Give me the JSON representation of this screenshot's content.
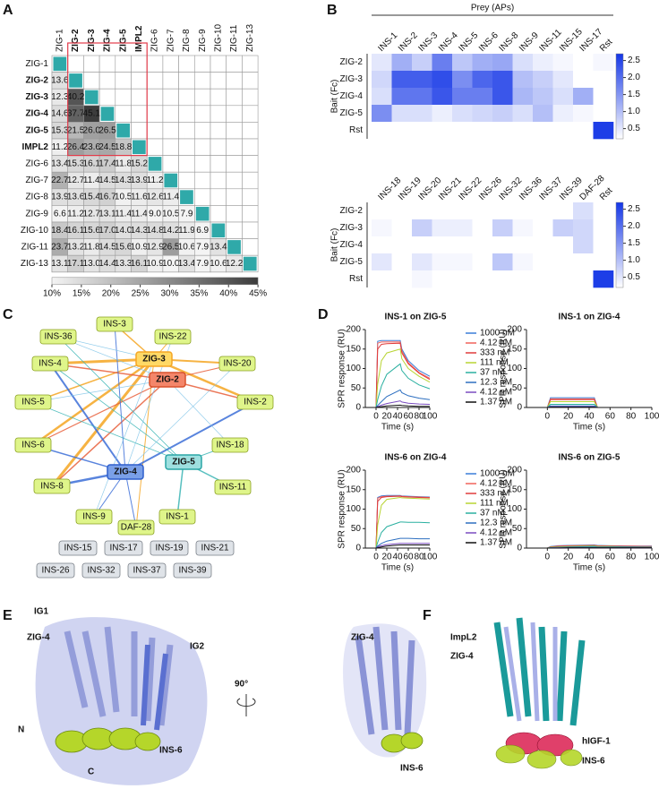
{
  "panel_labels": [
    "A",
    "B",
    "C",
    "D",
    "E",
    "F"
  ],
  "chart_data": [
    {
      "type": "triangle-heatmap",
      "labels": [
        "ZIG-1",
        "ZIG-2",
        "ZIG-3",
        "ZIG-4",
        "ZIG-5",
        "IMPL2",
        "ZIG-6",
        "ZIG-7",
        "ZIG-8",
        "ZIG-9",
        "ZIG-10",
        "ZIG-11",
        "ZIG-13"
      ],
      "bold_labels": [
        false,
        true,
        true,
        true,
        true,
        true,
        false,
        false,
        false,
        false,
        false,
        false,
        false
      ],
      "values": [
        [],
        [
          13.6
        ],
        [
          12.3,
          40.2
        ],
        [
          14.6,
          37.7,
          45.1
        ],
        [
          15.3,
          21.5,
          26.0,
          26.5
        ],
        [
          11.2,
          26.4,
          23.6,
          24.5,
          18.8
        ],
        [
          13.4,
          15.3,
          16.1,
          17.4,
          11.8,
          15.2
        ],
        [
          22.7,
          12.7,
          11.4,
          14.5,
          14.3,
          13.9,
          11.2
        ],
        [
          13.9,
          13.6,
          15.4,
          16.7,
          10.5,
          11.6,
          12.6,
          11.4
        ],
        [
          6.6,
          11.2,
          12.7,
          13.1,
          11.4,
          11.4,
          9.0,
          10.5,
          7.9
        ],
        [
          18.4,
          16.1,
          15.6,
          17.0,
          14.0,
          14.3,
          14.8,
          14.2,
          11.9,
          6.9
        ],
        [
          23.7,
          13.2,
          11.8,
          14.5,
          15.6,
          10.9,
          12.9,
          26.5,
          10.6,
          7.9,
          13.4
        ],
        [
          13.1,
          17.1,
          13.0,
          14.4,
          13.3,
          16.1,
          10.9,
          10.0,
          13.4,
          7.9,
          10.6,
          12.2
        ]
      ],
      "value_labels": [
        [],
        [
          "13.6"
        ],
        [
          "12.3",
          "40.2"
        ],
        [
          "14.6",
          "37.7",
          "45.1"
        ],
        [
          "15.3",
          "21.5",
          "26.0",
          "26.5"
        ],
        [
          "11.2",
          "26.4",
          "23.6",
          "24.5",
          "18.8"
        ],
        [
          "13.4",
          "15.3",
          "16.1",
          "17.4",
          "11.8",
          "15.2"
        ],
        [
          "22.7",
          "12.7",
          "11.4",
          "14.5",
          "14.3",
          "13.9",
          "11.2"
        ],
        [
          "13.9",
          "13.6",
          "15.4",
          "16.7",
          "10.5",
          "11.6",
          "12.6",
          "11.4"
        ],
        [
          "6.6",
          "11.2",
          "12.7",
          "13.1",
          "11.4",
          "11.4",
          "9.0",
          "10.5",
          "7.9"
        ],
        [
          "18.4",
          "16.1",
          "15.6",
          "17.0",
          "14.0",
          "14.3",
          "14.8",
          "14.2",
          "11.9",
          "6.9"
        ],
        [
          "23.7",
          "13.2",
          "11.8",
          "14.5",
          "15.6",
          "10.9",
          "12.9",
          "26.5",
          "10.6",
          "7.9",
          "13.4"
        ],
        [
          "13.1",
          "17.1",
          "13.0",
          "14.4",
          "13.3",
          "16.1",
          "10.9",
          "10.0",
          "13.4",
          "7.9",
          "10.6",
          "12.2"
        ]
      ],
      "diagonal_color": "#2fa9a9",
      "zlim": [
        10,
        45
      ],
      "zticks": [
        {
          "value": 10,
          "label": "10%"
        },
        {
          "value": 15,
          "label": "15%"
        },
        {
          "value": 20,
          "label": "20%"
        },
        {
          "value": 25,
          "label": "25%"
        },
        {
          "value": 30,
          "label": "30%"
        },
        {
          "value": 35,
          "label": "35%"
        },
        {
          "value": 40,
          "label": "40%"
        },
        {
          "value": 45,
          "label": "45%"
        }
      ]
    },
    {
      "type": "heatmap",
      "title": "Prey (APs)",
      "ylabel": "Bait (Fc)",
      "color": "#1436e6",
      "columns": [
        "INS-1",
        "INS-2",
        "INS-3",
        "INS-4",
        "INS-5",
        "INS-6",
        "INS-8",
        "INS-9",
        "INS-11",
        "INS-15",
        "INS-17",
        "Rst"
      ],
      "rows": [
        "ZIG-2",
        "ZIG-3",
        "ZIG-4",
        "ZIG-5",
        "Rst"
      ],
      "values": [
        [
          0.5,
          1.2,
          0.8,
          1.8,
          0.9,
          1.2,
          1.3,
          0.6,
          0.4,
          0.3,
          0.2,
          0.3
        ],
        [
          0.7,
          2.2,
          2.2,
          2.4,
          1.6,
          2.1,
          2.3,
          1.0,
          0.8,
          0.5,
          0.2,
          0.2
        ],
        [
          0.6,
          1.9,
          1.9,
          2.3,
          1.8,
          1.8,
          2.3,
          1.1,
          0.9,
          0.6,
          1.2,
          0.2
        ],
        [
          1.6,
          0.6,
          0.6,
          0.4,
          0.6,
          0.7,
          0.8,
          0.6,
          1.0,
          0.4,
          0.3,
          0.2
        ],
        [
          0.1,
          0.1,
          0.1,
          0.1,
          0.1,
          0.1,
          0.1,
          0.1,
          0.1,
          0.1,
          0.1,
          2.6
        ]
      ],
      "zlim": [
        0.2,
        2.7
      ],
      "zticks": [
        0.5,
        {
          "value": 1,
          "label": "1.0"
        },
        1.5,
        {
          "value": 2,
          "label": "2.0"
        },
        2.5
      ]
    },
    {
      "type": "heatmap",
      "ylabel": "Bait (Fc)",
      "color": "#1436e6",
      "columns": [
        "INS-18",
        "INS-19",
        "INS-20",
        "INS-21",
        "INS-22",
        "INS-26",
        "INS-32",
        "INS-36",
        "INS-37",
        "INS-39",
        "DAF-28",
        "Rst"
      ],
      "rows": [
        "ZIG-2",
        "ZIG-3",
        "ZIG-4",
        "ZIG-5",
        "Rst"
      ],
      "values": [
        [
          0.1,
          0.1,
          0.1,
          0.1,
          0.1,
          0.1,
          0.1,
          0.1,
          0.1,
          0.1,
          0.6,
          0.1
        ],
        [
          0.3,
          0.1,
          0.8,
          0.4,
          0.4,
          0.1,
          0.8,
          0.3,
          0.1,
          0.8,
          0.7,
          0.1
        ],
        [
          0.1,
          0.1,
          0.1,
          0.1,
          0.1,
          0.1,
          0.1,
          0.1,
          0.1,
          0.1,
          0.7,
          0.1
        ],
        [
          0.5,
          0.1,
          0.5,
          0.3,
          0.3,
          0.1,
          0.9,
          0.3,
          0.1,
          0.1,
          0.2,
          0.1
        ],
        [
          0.1,
          0.1,
          0.3,
          0.1,
          0.1,
          0.1,
          0.1,
          0.1,
          0.1,
          0.1,
          0.1,
          2.6
        ]
      ],
      "zlim": [
        0.2,
        2.7
      ],
      "zticks": [
        0.5,
        {
          "value": 1,
          "label": "1.0"
        },
        1.5,
        {
          "value": 2,
          "label": "2.0"
        },
        2.5
      ]
    },
    {
      "type": "line",
      "title": "INS-1 on ZIG-5",
      "xlabel": "Time (s)",
      "ylabel": "SPR response (RU)",
      "x": [
        -20,
        0,
        3,
        10,
        20,
        45,
        48,
        60,
        80,
        100
      ],
      "xlim": [
        -20,
        100
      ],
      "ylim": [
        0,
        200
      ],
      "xticks": [
        0,
        20,
        40,
        60,
        80,
        100
      ],
      "yticks": [
        0,
        50,
        100,
        150,
        200
      ],
      "series": [
        {
          "name": "1000 nM",
          "color": "#3b7dd8",
          "values": [
            0,
            0,
            170,
            172,
            172,
            172,
            150,
            120,
            95,
            80
          ]
        },
        {
          "name": "4.12 nM",
          "color": "#f0625a",
          "values": [
            0,
            0,
            165,
            168,
            168,
            168,
            145,
            115,
            90,
            75
          ]
        },
        {
          "name": "333 nM",
          "color": "#e03c3c",
          "values": [
            0,
            0,
            150,
            162,
            164,
            165,
            140,
            112,
            88,
            72
          ]
        },
        {
          "name": "111 nM",
          "color": "#b8d432",
          "values": [
            0,
            0,
            60,
            120,
            140,
            150,
            125,
            100,
            80,
            65
          ]
        },
        {
          "name": "37 nM",
          "color": "#2ab0a0",
          "values": [
            0,
            0,
            20,
            55,
            85,
            112,
            95,
            75,
            58,
            48
          ]
        },
        {
          "name": "12.3 nM",
          "color": "#2d6fc0",
          "values": [
            0,
            0,
            5,
            15,
            28,
            45,
            38,
            30,
            24,
            20
          ]
        },
        {
          "name": "4.12 nM",
          "color": "#7a4cc0",
          "values": [
            0,
            0,
            2,
            6,
            10,
            17,
            14,
            11,
            9,
            8
          ]
        },
        {
          "name": "1.37 nM",
          "color": "#111111",
          "values": [
            0,
            0,
            1,
            2,
            4,
            6,
            5,
            4,
            3,
            3
          ]
        }
      ]
    },
    {
      "type": "line",
      "title": "INS-1 on ZIG-4",
      "xlabel": "Time (s)",
      "ylabel": "SPR response (RU)",
      "x": [
        -20,
        0,
        3,
        10,
        20,
        45,
        48,
        60,
        80,
        100
      ],
      "xlim": [
        -20,
        100
      ],
      "ylim": [
        0,
        200
      ],
      "xticks": [
        0,
        20,
        40,
        60,
        80,
        100
      ],
      "yticks": [
        0,
        50,
        100,
        150,
        200
      ],
      "series": [
        {
          "color": "#3b7dd8",
          "values": [
            0,
            0,
            25,
            25,
            25,
            25,
            0,
            0,
            0,
            0
          ]
        },
        {
          "color": "#f0625a",
          "values": [
            0,
            0,
            22,
            22,
            22,
            22,
            0,
            0,
            0,
            0
          ]
        },
        {
          "color": "#e03c3c",
          "values": [
            0,
            0,
            20,
            20,
            20,
            20,
            0,
            0,
            0,
            0
          ]
        },
        {
          "color": "#b8d432",
          "values": [
            0,
            0,
            15,
            15,
            15,
            15,
            0,
            0,
            0,
            0
          ]
        },
        {
          "color": "#2ab0a0",
          "values": [
            0,
            0,
            8,
            8,
            8,
            8,
            0,
            0,
            0,
            0
          ]
        },
        {
          "color": "#2d6fc0",
          "values": [
            0,
            0,
            4,
            4,
            4,
            4,
            0,
            0,
            0,
            0
          ]
        },
        {
          "color": "#7a4cc0",
          "values": [
            0,
            0,
            2,
            2,
            2,
            2,
            0,
            0,
            0,
            0
          ]
        },
        {
          "color": "#111111",
          "values": [
            0,
            0,
            1,
            1,
            1,
            1,
            0,
            0,
            0,
            0
          ]
        }
      ]
    },
    {
      "type": "line",
      "title": "INS-6 on ZIG-4",
      "xlabel": "Time (s)",
      "ylabel": "SPR response (RU)",
      "x": [
        -20,
        0,
        3,
        10,
        20,
        45,
        48,
        60,
        80,
        100
      ],
      "xlim": [
        -20,
        100
      ],
      "ylim": [
        0,
        200
      ],
      "xticks": [
        0,
        20,
        40,
        60,
        80,
        100
      ],
      "yticks": [
        0,
        50,
        100,
        150,
        200
      ],
      "series": [
        {
          "name": "1000 nM",
          "color": "#3b7dd8",
          "values": [
            0,
            0,
            130,
            134,
            135,
            135,
            134,
            133,
            132,
            131
          ]
        },
        {
          "name": "4.12 nM",
          "color": "#f0625a",
          "values": [
            0,
            0,
            128,
            132,
            133,
            134,
            133,
            132,
            131,
            130
          ]
        },
        {
          "name": "333 nM",
          "color": "#e03c3c",
          "values": [
            0,
            0,
            120,
            130,
            132,
            133,
            132,
            131,
            130,
            129
          ]
        },
        {
          "name": "111 nM",
          "color": "#b8d432",
          "values": [
            0,
            0,
            60,
            110,
            125,
            130,
            129,
            128,
            127,
            126
          ]
        },
        {
          "name": "37 nM",
          "color": "#2ab0a0",
          "values": [
            0,
            0,
            15,
            40,
            55,
            67,
            67,
            66,
            66,
            65
          ]
        },
        {
          "name": "12.3 nM",
          "color": "#2d6fc0",
          "values": [
            0,
            0,
            5,
            12,
            18,
            25,
            25,
            25,
            24,
            24
          ]
        },
        {
          "name": "4.12 nM",
          "color": "#7a4cc0",
          "values": [
            0,
            0,
            3,
            6,
            9,
            12,
            12,
            12,
            12,
            12
          ]
        },
        {
          "name": "1.37 nM",
          "color": "#111111",
          "values": [
            0,
            0,
            1,
            3,
            5,
            8,
            8,
            8,
            8,
            8
          ]
        }
      ]
    },
    {
      "type": "line",
      "title": "INS-6 on ZIG-5",
      "xlabel": "Time (s)",
      "ylabel": "SPR response (RU)",
      "x": [
        -20,
        0,
        3,
        10,
        20,
        45,
        48,
        60,
        80,
        100
      ],
      "xlim": [
        -20,
        100
      ],
      "ylim": [
        0,
        200
      ],
      "xticks": [
        0,
        20,
        40,
        60,
        80,
        100
      ],
      "yticks": [
        0,
        50,
        100,
        150,
        200
      ],
      "series": [
        {
          "color": "#3b7dd8",
          "values": [
            0,
            0,
            4,
            6,
            7,
            8,
            7,
            6,
            5,
            5
          ]
        },
        {
          "color": "#f0625a",
          "values": [
            0,
            0,
            3,
            5,
            6,
            7,
            6,
            5,
            5,
            4
          ]
        },
        {
          "color": "#e03c3c",
          "values": [
            0,
            0,
            3,
            4,
            5,
            6,
            5,
            5,
            4,
            4
          ]
        },
        {
          "color": "#b8d432",
          "values": [
            0,
            0,
            2,
            3,
            4,
            5,
            4,
            4,
            3,
            3
          ]
        },
        {
          "color": "#2ab0a0",
          "values": [
            0,
            0,
            1,
            2,
            3,
            4,
            3,
            3,
            3,
            2
          ]
        },
        {
          "color": "#2d6fc0",
          "values": [
            0,
            0,
            1,
            1,
            2,
            2,
            2,
            2,
            2,
            2
          ]
        },
        {
          "color": "#7a4cc0",
          "values": [
            0,
            0,
            0,
            1,
            1,
            1,
            1,
            1,
            1,
            1
          ]
        },
        {
          "color": "#111111",
          "values": [
            0,
            0,
            0,
            0,
            1,
            1,
            1,
            1,
            1,
            1
          ]
        }
      ]
    }
  ],
  "network": {
    "nodes": [
      "ZIG-3",
      "ZIG-2",
      "ZIG-4",
      "ZIG-5",
      "INS-3",
      "INS-36",
      "INS-22",
      "INS-4",
      "INS-20",
      "INS-5",
      "INS-2",
      "INS-6",
      "INS-18",
      "INS-8",
      "INS-11",
      "INS-9",
      "DAF-28",
      "INS-1"
    ],
    "unconnected": [
      "INS-15",
      "INS-17",
      "INS-19",
      "INS-21",
      "INS-26",
      "INS-32",
      "INS-37",
      "INS-39"
    ]
  },
  "panel_E_labels": [
    "IG1",
    "ZIG-4",
    "IG2",
    "90°",
    "N",
    "C",
    "INS-6",
    "ZIG-4",
    "INS-6"
  ],
  "panel_F_labels": [
    "ImpL2",
    "ZIG-4",
    "hIGF-1",
    "INS-6"
  ]
}
